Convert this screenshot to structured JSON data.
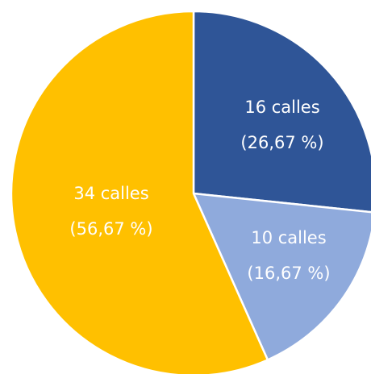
{
  "chart_data": {
    "type": "pie",
    "values": [
      16,
      10,
      34
    ],
    "value_labels": [
      "16 calles",
      "10 calles",
      "34 calles"
    ],
    "percentages": [
      26.67,
      16.67,
      56.67
    ],
    "percentage_labels": [
      "(26,67 %)",
      "(16,67 %)",
      "(56,67 %)"
    ],
    "colors": [
      "#2f5597",
      "#8faadc",
      "#ffc000"
    ]
  }
}
